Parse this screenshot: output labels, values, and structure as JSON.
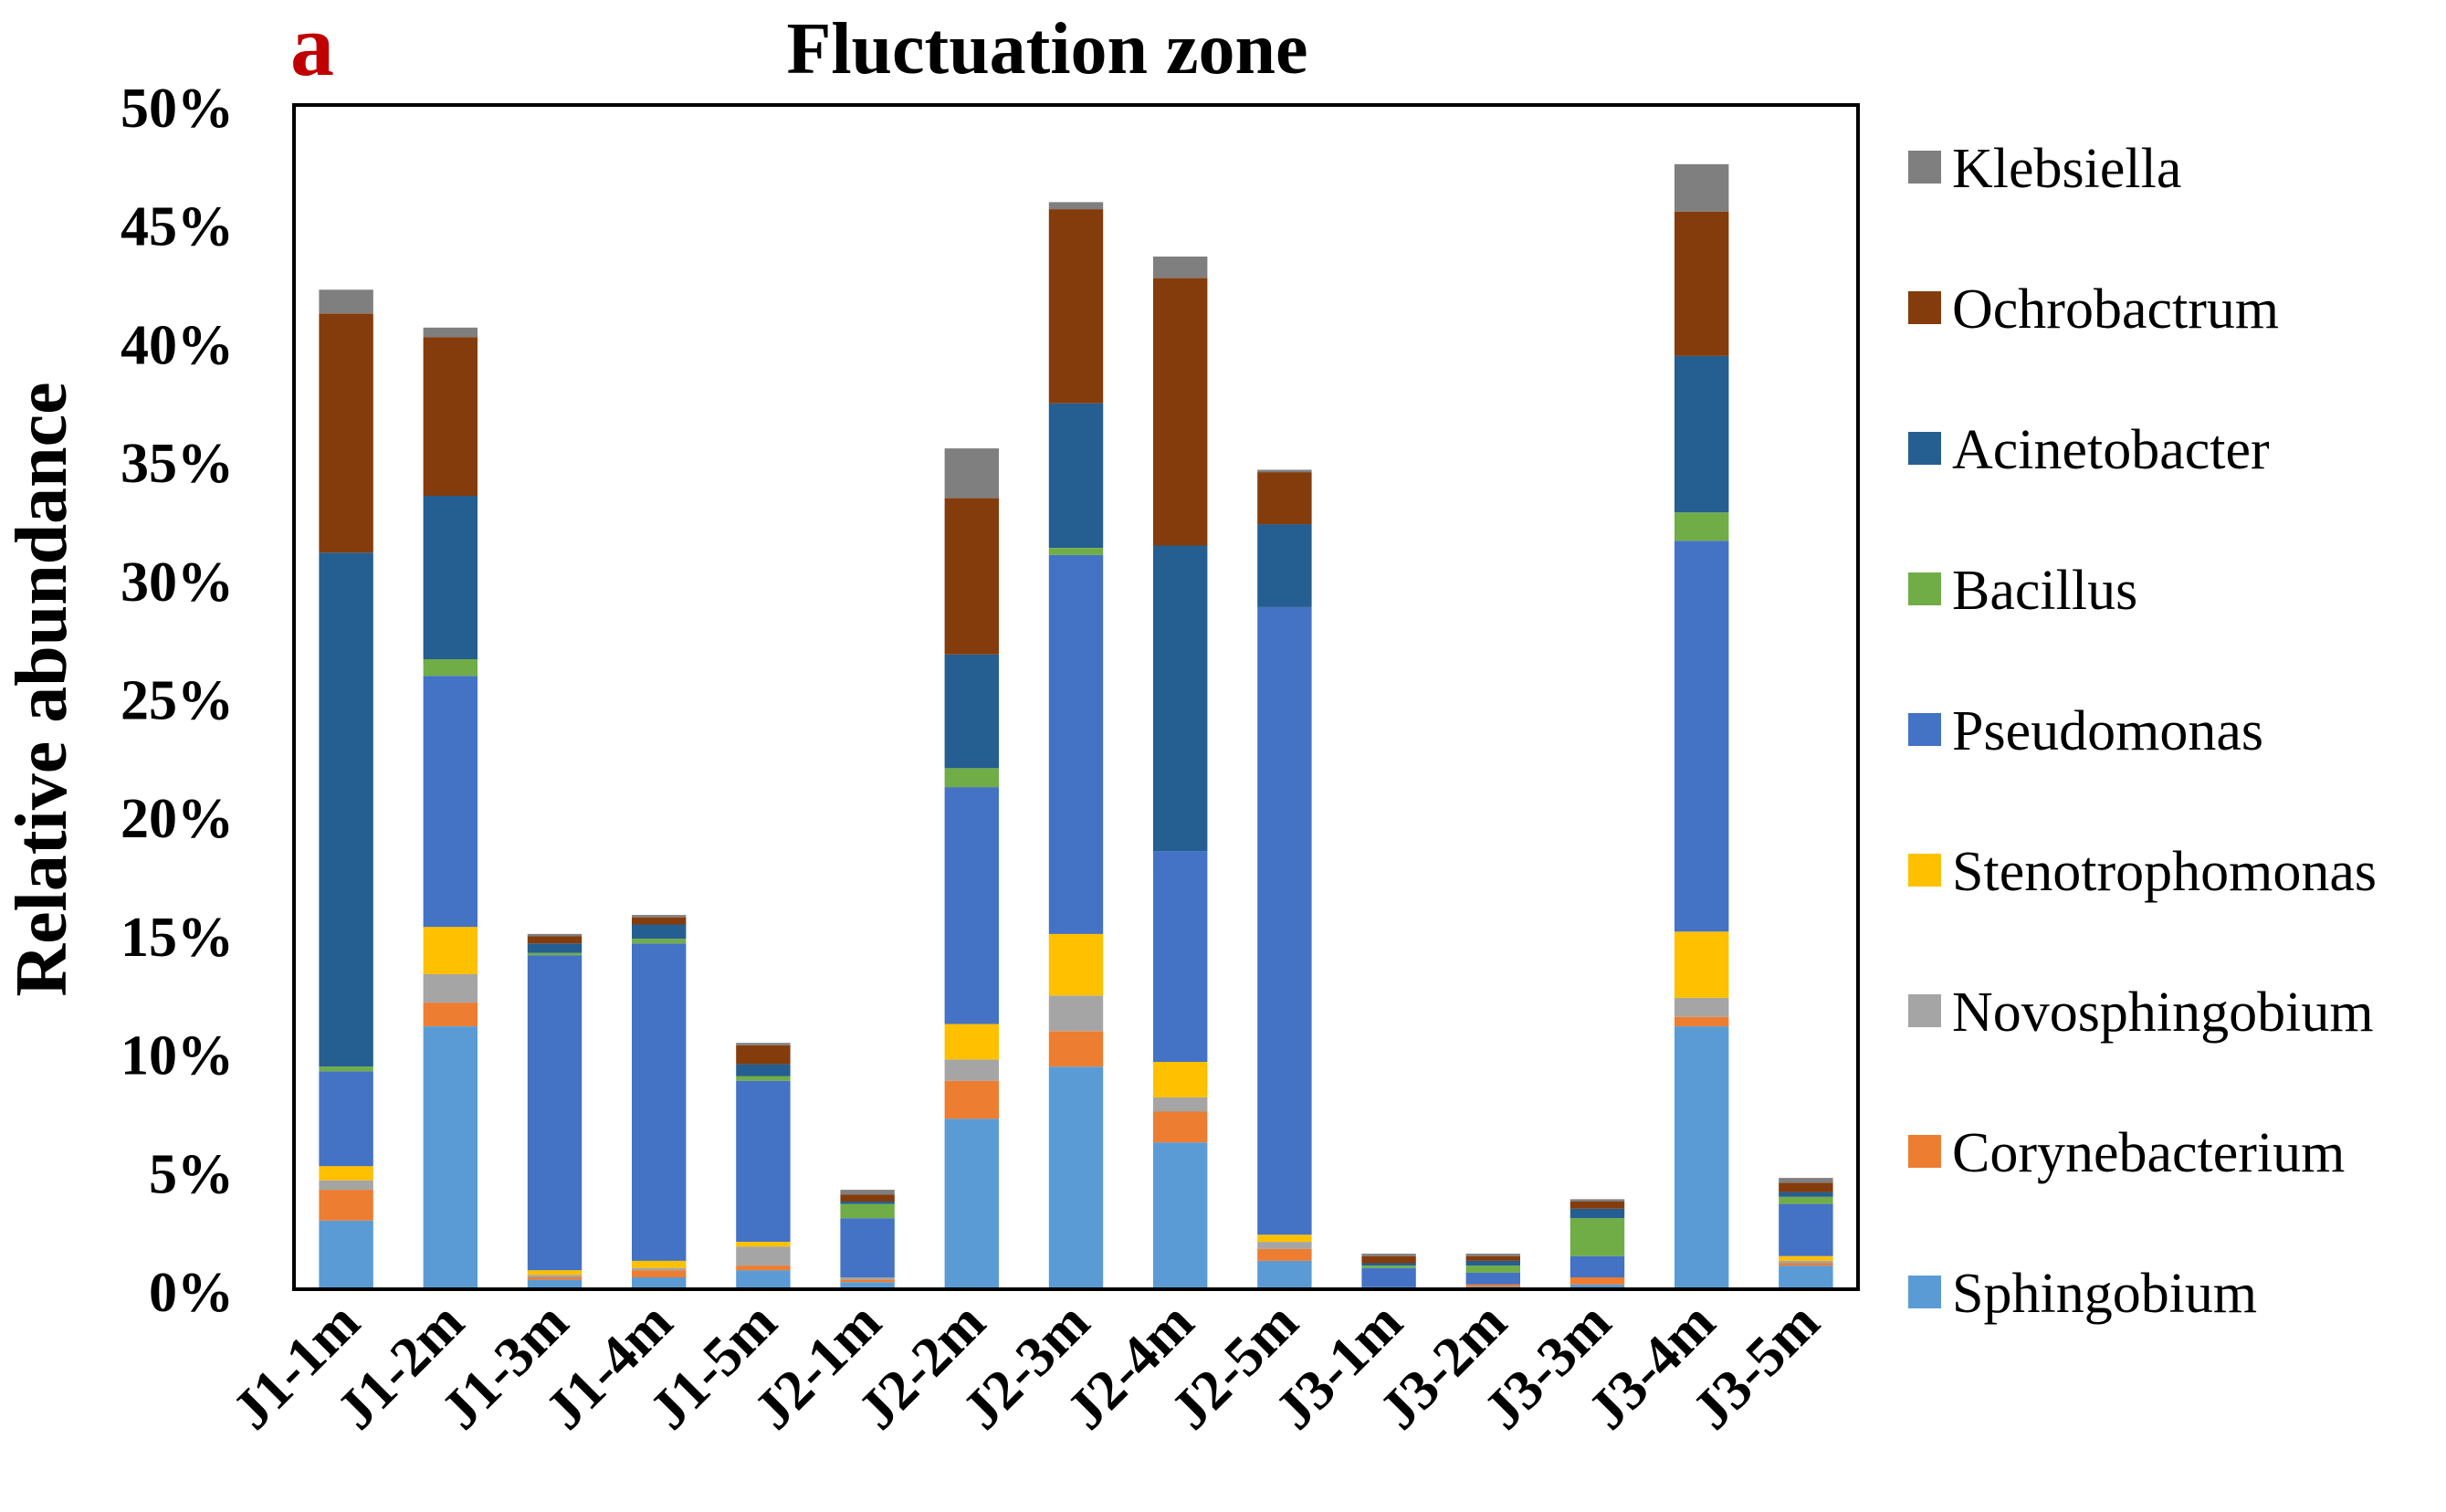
{
  "chart_data": {
    "type": "bar",
    "stacked": true,
    "panel_label": "a",
    "title": "Fluctuation zone",
    "xlabel": "",
    "ylabel": "Relative abundance",
    "ylim": [
      0,
      50
    ],
    "ytick_labels": [
      "0%",
      "5%",
      "10%",
      "15%",
      "20%",
      "25%",
      "30%",
      "35%",
      "40%",
      "45%",
      "50%"
    ],
    "categories": [
      "J1-1m",
      "J1-2m",
      "J1-3m",
      "J1-4m",
      "J1-5m",
      "J2-1m",
      "J2-2m",
      "J2-3m",
      "J2-4m",
      "J2-5m",
      "J3-1m",
      "J3-2m",
      "J3-3m",
      "J3-4m",
      "J3-5m"
    ],
    "series": [
      {
        "name": "Sphingobium",
        "color": "#5b9bd5",
        "values": [
          2.9,
          11.1,
          0.4,
          0.5,
          0.8,
          0.3,
          7.2,
          9.4,
          6.2,
          1.2,
          0.1,
          0.1,
          0.2,
          11.1,
          1.0
        ]
      },
      {
        "name": "Corynebacterium",
        "color": "#ed7d31",
        "values": [
          1.3,
          1.0,
          0.1,
          0.3,
          0.2,
          0.1,
          1.6,
          1.5,
          1.3,
          0.5,
          0.0,
          0.1,
          0.3,
          0.4,
          0.1
        ]
      },
      {
        "name": "Novosphingobium",
        "color": "#a5a5a5",
        "values": [
          0.4,
          1.2,
          0.1,
          0.1,
          0.8,
          0.1,
          0.9,
          1.5,
          0.6,
          0.3,
          0.0,
          0.0,
          0.0,
          0.8,
          0.1
        ]
      },
      {
        "name": "Stenotrophomonas",
        "color": "#ffc000",
        "values": [
          0.6,
          2.0,
          0.2,
          0.3,
          0.2,
          0.0,
          1.5,
          2.6,
          1.5,
          0.3,
          0.0,
          0.0,
          0.0,
          2.8,
          0.2
        ]
      },
      {
        "name": "Pseudomonas",
        "color": "#4472c4",
        "values": [
          4.0,
          10.6,
          13.3,
          13.4,
          6.8,
          2.5,
          10.0,
          16.0,
          8.9,
          26.5,
          0.8,
          0.5,
          0.9,
          16.5,
          2.2
        ]
      },
      {
        "name": "Bacillus",
        "color": "#70ad47",
        "values": [
          0.2,
          0.7,
          0.1,
          0.2,
          0.2,
          0.6,
          0.8,
          0.3,
          0.0,
          0.0,
          0.1,
          0.3,
          1.6,
          1.2,
          0.3
        ]
      },
      {
        "name": "Acinetobacter",
        "color": "#255e91",
        "values": [
          21.7,
          6.9,
          0.4,
          0.6,
          0.5,
          0.1,
          4.8,
          6.1,
          12.9,
          3.5,
          0.1,
          0.2,
          0.4,
          6.6,
          0.2
        ]
      },
      {
        "name": "Ochrobactrum",
        "color": "#843c0c",
        "values": [
          10.1,
          6.7,
          0.3,
          0.3,
          0.8,
          0.3,
          6.6,
          8.2,
          11.3,
          2.2,
          0.3,
          0.2,
          0.3,
          6.1,
          0.4
        ]
      },
      {
        "name": "Klebsiella",
        "color": "#7f7f7f",
        "values": [
          1.0,
          0.4,
          0.1,
          0.1,
          0.1,
          0.2,
          2.1,
          0.3,
          0.9,
          0.1,
          0.1,
          0.1,
          0.1,
          2.0,
          0.2
        ]
      }
    ],
    "legend_position": "right",
    "legend_order": [
      "Klebsiella",
      "Ochrobactrum",
      "Acinetobacter",
      "Bacillus",
      "Pseudomonas",
      "Stenotrophomonas",
      "Novosphingobium",
      "Corynebacterium",
      "Sphingobium"
    ],
    "grid": false
  }
}
